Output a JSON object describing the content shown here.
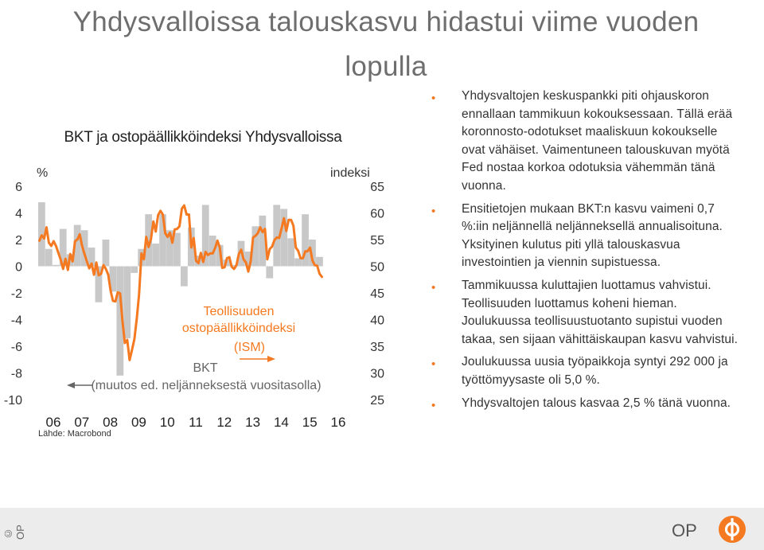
{
  "title": "Yhdysvalloissa talouskasvu hidastui viime vuoden lopulla",
  "chart_title": "BKT ja ostopäällikköindeksi Yhdysvalloissa",
  "left_unit": "%",
  "right_unit": "indeksi",
  "source": "Lähde: Macrobond",
  "colors": {
    "accent": "#f47920",
    "bars": "#c8c8c8",
    "title": "#6e6e6e",
    "footer": "#ececec"
  },
  "chart_data": {
    "type": "bar+line",
    "left_axis": {
      "label": "%",
      "ylim": [
        -10,
        6
      ],
      "ticks": [
        "6",
        "4",
        "2",
        "0",
        "-2",
        "-4",
        "-6",
        "-8",
        "-10"
      ]
    },
    "right_axis": {
      "label": "indeksi",
      "ylim": [
        25,
        65
      ],
      "ticks": [
        "65",
        "60",
        "55",
        "50",
        "45",
        "40",
        "35",
        "30",
        "25"
      ]
    },
    "x_ticks": [
      "06",
      "07",
      "08",
      "09",
      "10",
      "11",
      "12",
      "13",
      "14",
      "15",
      "16"
    ],
    "bar_series": {
      "label": "BKT",
      "sublabel": "(muutos ed. neljänneksestä vuositasolla)",
      "axis": "left",
      "quarters": [
        "2006Q1",
        "2006Q2",
        "2006Q3",
        "2006Q4",
        "2007Q1",
        "2007Q2",
        "2007Q3",
        "2007Q4",
        "2008Q1",
        "2008Q2",
        "2008Q3",
        "2008Q4",
        "2009Q1",
        "2009Q2",
        "2009Q3",
        "2009Q4",
        "2010Q1",
        "2010Q2",
        "2010Q3",
        "2010Q4",
        "2011Q1",
        "2011Q2",
        "2011Q3",
        "2011Q4",
        "2012Q1",
        "2012Q2",
        "2012Q3",
        "2012Q4",
        "2013Q1",
        "2013Q2",
        "2013Q3",
        "2013Q4",
        "2014Q1",
        "2014Q2",
        "2014Q3",
        "2014Q4",
        "2015Q1",
        "2015Q2",
        "2015Q3",
        "2015Q4"
      ],
      "values": [
        4.8,
        1.3,
        0.1,
        2.8,
        0.9,
        3.1,
        2.7,
        1.4,
        -2.7,
        2.0,
        -1.9,
        -8.2,
        -5.4,
        -0.5,
        1.3,
        3.9,
        1.7,
        3.9,
        2.7,
        2.5,
        -1.5,
        2.9,
        0.8,
        4.6,
        2.3,
        1.6,
        0.5,
        0.1,
        1.9,
        1.1,
        3.0,
        3.8,
        -0.9,
        4.6,
        4.3,
        2.1,
        0.6,
        3.9,
        2.0,
        0.7
      ]
    },
    "line_series": {
      "label": "Teollisuuden ostopäällikköindeksi",
      "sublabel": "(ISM)",
      "axis": "right",
      "start": "2006-01",
      "values": [
        54.8,
        55.8,
        55.2,
        57.3,
        54.4,
        53.8,
        54.7,
        53.8,
        52.5,
        51.2,
        49.5,
        51.4,
        49.3,
        52.3,
        50.9,
        54.7,
        55.0,
        56.0,
        53.8,
        52.3,
        50.9,
        49.6,
        50.5,
        48.4,
        50.7,
        48.3,
        48.6,
        50.2,
        49.5,
        48.4,
        45.4,
        43.5,
        43.4,
        45.1,
        44.9,
        39.7,
        35.6,
        36.2,
        32.4,
        34.3,
        36.3,
        40.1,
        44.8,
        52.4,
        51.3,
        55.5,
        53.6,
        55.1,
        58.4,
        56.5,
        59.6,
        60.4,
        59.7,
        56.2,
        55.5,
        56.3,
        54.4,
        56.9,
        57.0,
        57.5,
        60.8,
        61.4,
        59.7,
        59.7,
        53.5,
        55.3,
        51.0,
        50.6,
        52.5,
        50.8,
        52.7,
        52.1,
        52.4,
        52.4,
        53.4,
        54.8,
        53.5,
        49.7,
        49.8,
        51.5,
        51.7,
        49.9,
        49.5,
        50.2,
        52.3,
        53.1,
        51.3,
        50.7,
        49.0,
        50.9,
        55.4,
        55.7,
        56.2,
        57.3,
        56.4,
        57.0,
        51.3,
        53.2,
        53.7,
        54.9,
        55.4,
        55.3,
        57.1,
        59.0,
        56.6,
        58.7,
        58.7,
        57.6,
        53.5,
        52.9,
        51.5,
        51.5,
        52.8,
        52.8,
        53.5,
        51.1,
        50.2,
        50.1,
        48.6,
        48.0
      ]
    },
    "annotations": {
      "line_name_1": "Teollisuuden",
      "line_name_2": "ostopäällikköindeksi",
      "line_name_3": "(ISM)",
      "bar_name_1": "BKT",
      "bar_name_2": "(muutos ed. neljänneksestä vuositasolla)"
    }
  },
  "bullets": [
    "Yhdysvaltojen keskuspankki piti ohjauskoron ennallaan tammikuun kokouksessaan. Tällä erää koronnosto-odotukset maaliskuun kokoukselle ovat vähäiset. Vaimentuneen talouskuvan myötä Fed nostaa korkoa odotuksia vähemmän tänä vuonna.",
    "Ensitietojen mukaan BKT:n kasvu vaimeni 0,7 %:iin neljännellä neljänneksellä annualisoituna. Yksityinen kulutus piti yllä talouskasvua investointien ja viennin supistuessa.",
    "Tammikuussa kuluttajien luottamus vahvistui. Teollisuuden luottamus koheni hieman. Joulukuussa teollisuustuotanto supistui vuoden takaa, sen sijaan vähittäiskaupan kasvu vahvistui.",
    "Joulukuussa uusia työpaikkoja syntyi 292 000 ja työttömyysaste oli 5,0 %.",
    "Yhdysvaltojen talous kasvaa 2,5 % tänä vuonna."
  ],
  "footer": {
    "copyright": "© OP",
    "logo_text": "OP"
  }
}
